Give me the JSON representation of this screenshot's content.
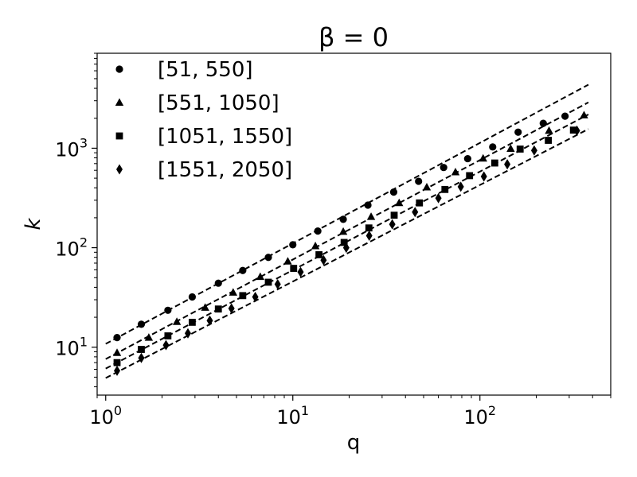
{
  "chart_data": {
    "type": "scatter",
    "title": "β = 0",
    "xlabel": "q",
    "ylabel": "k",
    "x_scale": "log",
    "y_scale": "log",
    "xlim": [
      0.9,
      500
    ],
    "ylim": [
      3.3,
      9000
    ],
    "x_ticks": [
      {
        "value": 1,
        "label": "10",
        "exp": "0"
      },
      {
        "value": 10,
        "label": "10",
        "exp": "1"
      },
      {
        "value": 100,
        "label": "10",
        "exp": "2"
      }
    ],
    "y_ticks": [
      {
        "value": 10,
        "label": "10",
        "exp": "1"
      },
      {
        "value": 100,
        "label": "10",
        "exp": "2"
      },
      {
        "value": 1000,
        "label": "10",
        "exp": "3"
      }
    ],
    "grid": false,
    "legend_position": "top-left",
    "series": [
      {
        "name": "[51, 550]",
        "marker": "circle",
        "points": [
          [
            1.15,
            12.5
          ],
          [
            1.55,
            17
          ],
          [
            2.15,
            23.5
          ],
          [
            2.9,
            32
          ],
          [
            4.0,
            44
          ],
          [
            5.4,
            59
          ],
          [
            7.4,
            80
          ],
          [
            10.0,
            107
          ],
          [
            13.6,
            147
          ],
          [
            18.6,
            193
          ],
          [
            25.2,
            268
          ],
          [
            34.6,
            362
          ],
          [
            47,
            465
          ],
          [
            64,
            640
          ],
          [
            86,
            785
          ],
          [
            117,
            1030
          ],
          [
            160,
            1450
          ],
          [
            218,
            1780
          ],
          [
            285,
            2100
          ]
        ],
        "fit": {
          "a": 10.8,
          "b": 1.01,
          "x_range": [
            1,
            380
          ]
        }
      },
      {
        "name": "[551, 1050]",
        "marker": "triangle",
        "points": [
          [
            1.15,
            8.8
          ],
          [
            1.7,
            12.5
          ],
          [
            2.4,
            18
          ],
          [
            3.4,
            25
          ],
          [
            4.8,
            35.5
          ],
          [
            6.7,
            51
          ],
          [
            9.4,
            73
          ],
          [
            13.2,
            104
          ],
          [
            18.6,
            145
          ],
          [
            26.2,
            205
          ],
          [
            37,
            282
          ],
          [
            52,
            405
          ],
          [
            74,
            575
          ],
          [
            104,
            790
          ],
          [
            146,
            990
          ],
          [
            234,
            1500
          ],
          [
            360,
            2150
          ]
        ],
        "fit": {
          "a": 7.6,
          "b": 1.0,
          "x_range": [
            1,
            380
          ]
        }
      },
      {
        "name": "[1051, 1550]",
        "marker": "square",
        "points": [
          [
            1.15,
            7
          ],
          [
            1.55,
            9.5
          ],
          [
            2.15,
            13
          ],
          [
            2.9,
            17.8
          ],
          [
            4.0,
            24.2
          ],
          [
            5.4,
            33
          ],
          [
            7.4,
            45
          ],
          [
            10.1,
            62
          ],
          [
            13.8,
            85
          ],
          [
            18.8,
            113
          ],
          [
            25.5,
            158
          ],
          [
            34.8,
            212
          ],
          [
            47.5,
            282
          ],
          [
            65,
            385
          ],
          [
            88,
            530
          ],
          [
            120,
            710
          ],
          [
            164,
            980
          ],
          [
            232,
            1200
          ],
          [
            316,
            1520
          ]
        ],
        "fit": {
          "a": 6.1,
          "b": 0.99,
          "x_range": [
            1,
            380
          ]
        }
      },
      {
        "name": "[1551, 2050]",
        "marker": "diamond",
        "points": [
          [
            1.15,
            5.8
          ],
          [
            1.55,
            7.8
          ],
          [
            2.1,
            10.5
          ],
          [
            2.75,
            13.8
          ],
          [
            3.6,
            18.5
          ],
          [
            4.7,
            24.5
          ],
          [
            6.3,
            32
          ],
          [
            8.3,
            43
          ],
          [
            11,
            57
          ],
          [
            14.6,
            75
          ],
          [
            19.3,
            100
          ],
          [
            25.6,
            132
          ],
          [
            34,
            172
          ],
          [
            45,
            228
          ],
          [
            60,
            315
          ],
          [
            79,
            410
          ],
          [
            105,
            520
          ],
          [
            140,
            690
          ],
          [
            195,
            950
          ],
          [
            330,
            1500
          ]
        ],
        "fit": {
          "a": 4.9,
          "b": 0.97,
          "x_range": [
            1,
            380
          ]
        }
      }
    ]
  }
}
